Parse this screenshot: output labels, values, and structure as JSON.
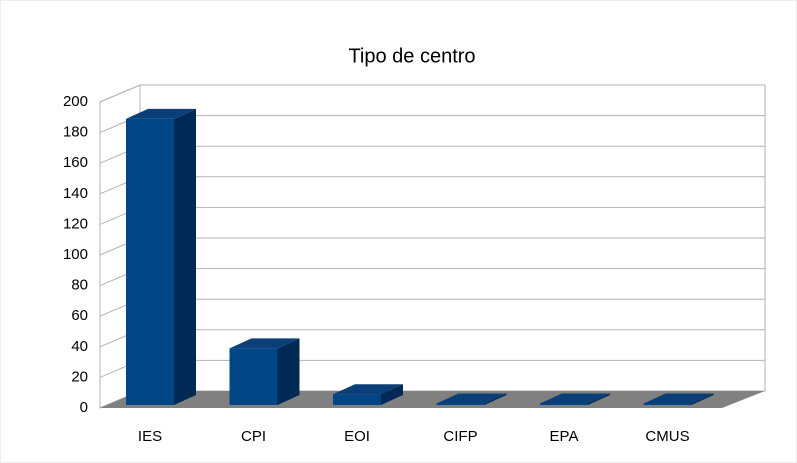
{
  "chart_data": {
    "type": "bar3d",
    "title": "Tipo de centro",
    "categories": [
      "IES",
      "CPI",
      "EOI",
      "CIFP",
      "EPA",
      "CMUS"
    ],
    "values": [
      187,
      37,
      7,
      1,
      1,
      1
    ],
    "color": "#004586",
    "ylim": [
      0,
      200
    ],
    "yticks": [
      0,
      20,
      40,
      60,
      80,
      100,
      120,
      140,
      160,
      180,
      200
    ],
    "grid": true
  }
}
